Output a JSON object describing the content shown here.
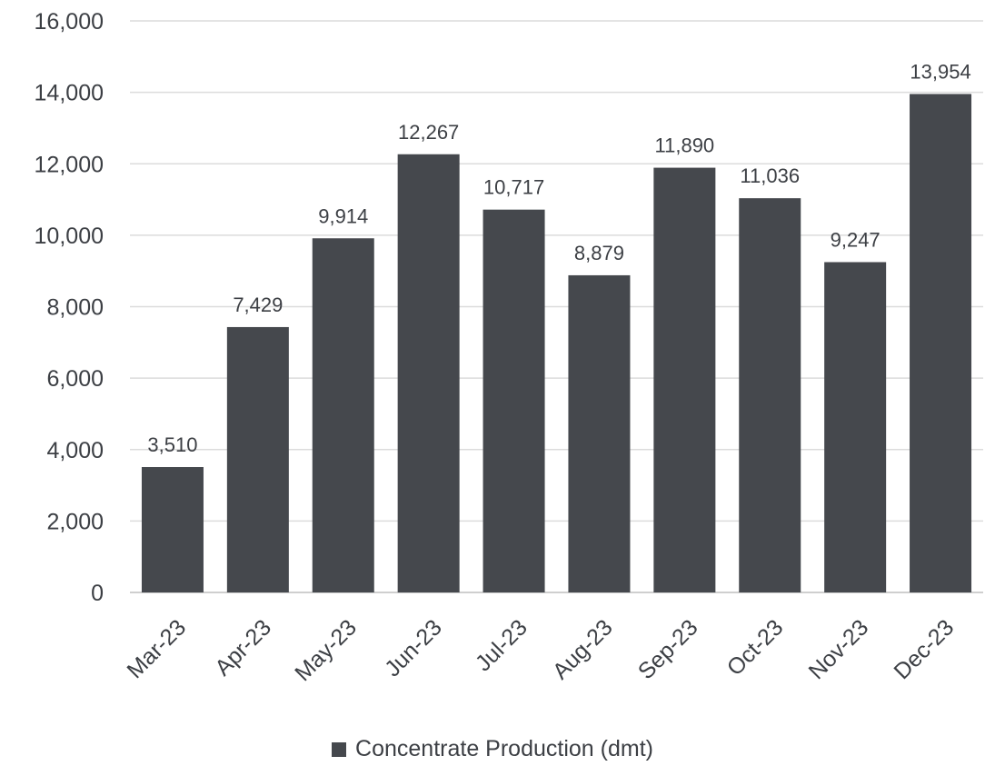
{
  "chart_data": {
    "type": "bar",
    "categories": [
      "Mar-23",
      "Apr-23",
      "May-23",
      "Jun-23",
      "Jul-23",
      "Aug-23",
      "Sep-23",
      "Oct-23",
      "Nov-23",
      "Dec-23"
    ],
    "series": [
      {
        "name": "Concentrate Production (dmt)",
        "values": [
          3510,
          7429,
          9914,
          12267,
          10717,
          8879,
          11890,
          11036,
          9247,
          13954
        ]
      }
    ],
    "data_labels": [
      "3,510",
      "7,429",
      "9,914",
      "12,267",
      "10,717",
      "8,879",
      "11,890",
      "11,036",
      "9,247",
      "13,954"
    ],
    "yticks": [
      0,
      2000,
      4000,
      6000,
      8000,
      10000,
      12000,
      14000,
      16000
    ],
    "ytick_labels": [
      "0",
      "2,000",
      "4,000",
      "6,000",
      "8,000",
      "10,000",
      "12,000",
      "14,000",
      "16,000"
    ],
    "ylim": [
      0,
      16000
    ],
    "grid": true,
    "legend_position": "bottom",
    "bar_color": "#45484d",
    "title": "",
    "xlabel": "",
    "ylabel": ""
  }
}
